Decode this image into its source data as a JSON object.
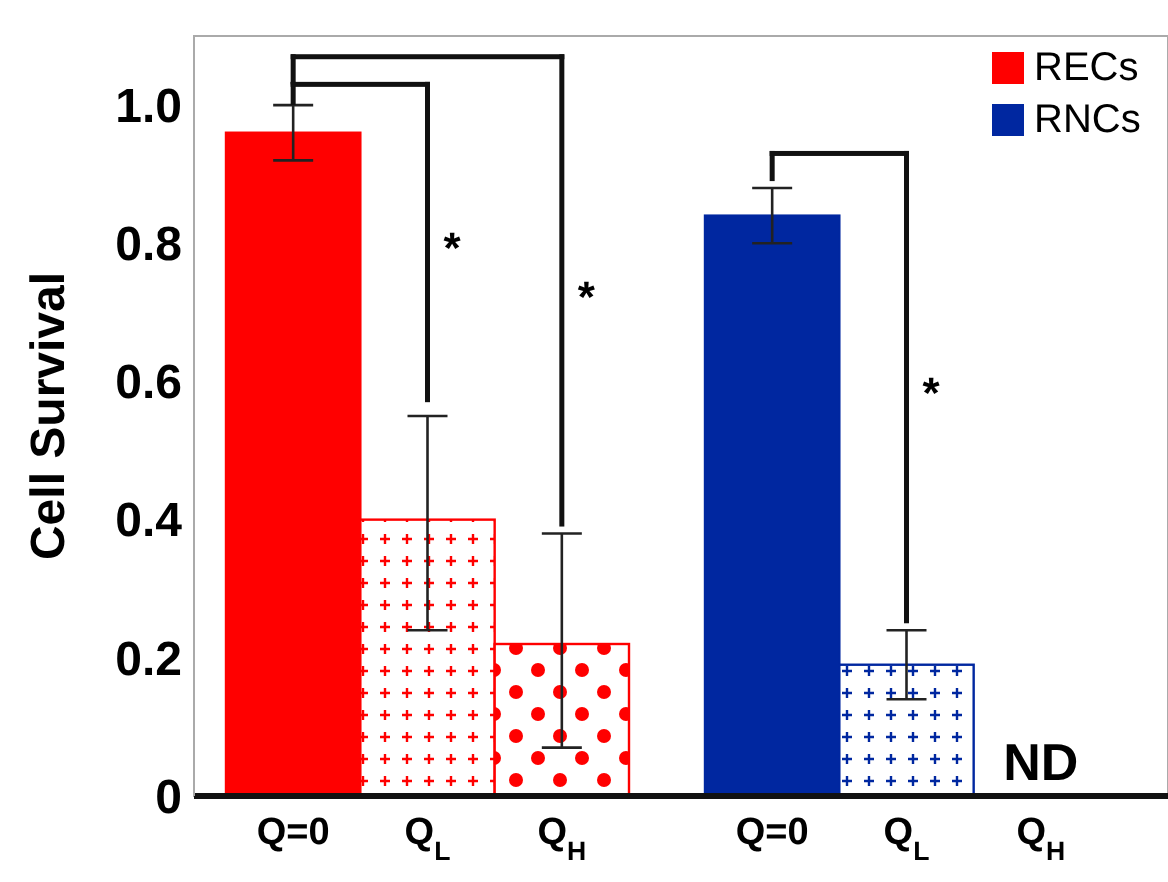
{
  "chart_data": {
    "type": "bar",
    "ylabel": "Cell Survival",
    "categories": [
      "Q=0",
      "Q$_{L}$",
      "Q$_{H}$",
      "Q=0",
      "Q$_{L}$",
      "Q$_{H}$"
    ],
    "series": [
      {
        "name": "RECs",
        "color": "#ff0000",
        "values": [
          0.96,
          0.4,
          0.22,
          null,
          null,
          null
        ],
        "errors": [
          [
            0.92,
            1.0
          ],
          [
            0.24,
            0.55
          ],
          [
            0.07,
            0.38
          ],
          null,
          null,
          null
        ]
      },
      {
        "name": "RNCs",
        "color": "#0027a0",
        "values": [
          null,
          null,
          null,
          0.84,
          0.19,
          null
        ],
        "errors": [
          null,
          null,
          null,
          [
            0.8,
            0.88
          ],
          [
            0.14,
            0.24
          ],
          null
        ]
      }
    ],
    "ylim": [
      0,
      1.1
    ],
    "yticks": [
      0,
      0.2,
      0.4,
      0.6,
      0.8,
      {
        "value": 1,
        "label": "1.0"
      }
    ],
    "legend": "top right",
    "grid": false,
    "annotations": [
      "*",
      "*",
      "*",
      "ND"
    ]
  }
}
